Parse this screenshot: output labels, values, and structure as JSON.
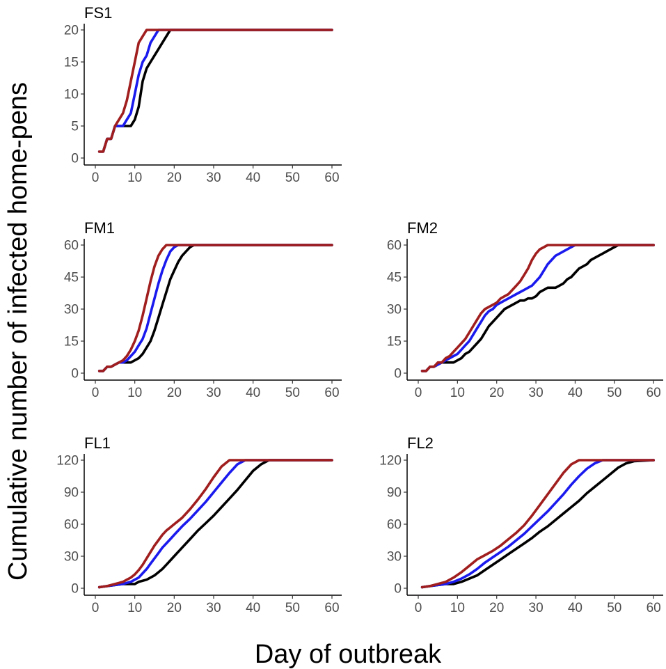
{
  "figure": {
    "ylabel": "Cumulative number of infected home-pens",
    "xlabel": "Day of outbreak"
  },
  "colors": {
    "black": "#000000",
    "blue": "#1a1aee",
    "red": "#a01e1e"
  },
  "chart_data": [
    {
      "type": "line",
      "title": "FS1",
      "xlim": [
        0,
        60
      ],
      "ylim": [
        0,
        20
      ],
      "xticks": [
        0,
        10,
        20,
        30,
        40,
        50,
        60
      ],
      "yticks": [
        0,
        5,
        10,
        15,
        20
      ],
      "series": [
        {
          "name": "black",
          "color": "#000000",
          "x": [
            1,
            2,
            3,
            4,
            5,
            6,
            7,
            8,
            9,
            10,
            11,
            12,
            13,
            14,
            15,
            16,
            17,
            18,
            19,
            60
          ],
          "y": [
            1,
            1,
            3,
            3,
            5,
            5,
            5,
            5,
            5,
            6,
            8,
            12,
            14,
            15,
            16,
            17,
            18,
            19,
            20,
            20
          ]
        },
        {
          "name": "blue",
          "color": "#1a1aee",
          "x": [
            1,
            2,
            3,
            4,
            5,
            6,
            7,
            8,
            9,
            10,
            11,
            12,
            13,
            14,
            15,
            16,
            60
          ],
          "y": [
            1,
            1,
            3,
            3,
            5,
            5,
            5,
            6,
            7,
            10,
            13,
            15,
            16,
            18,
            19,
            20,
            20
          ]
        },
        {
          "name": "red",
          "color": "#a01e1e",
          "x": [
            1,
            2,
            3,
            4,
            5,
            6,
            7,
            8,
            9,
            10,
            11,
            12,
            13,
            60
          ],
          "y": [
            1,
            1,
            3,
            3,
            5,
            6,
            7,
            9,
            12,
            15,
            18,
            19,
            20,
            20
          ]
        }
      ]
    },
    {
      "type": "line",
      "title": "FM1",
      "xlim": [
        0,
        60
      ],
      "ylim": [
        0,
        60
      ],
      "xticks": [
        0,
        10,
        20,
        30,
        40,
        50,
        60
      ],
      "yticks": [
        0,
        15,
        30,
        45,
        60
      ],
      "series": [
        {
          "name": "black",
          "color": "#000000",
          "x": [
            1,
            2,
            3,
            4,
            5,
            6,
            7,
            8,
            9,
            10,
            11,
            12,
            13,
            14,
            15,
            16,
            17,
            18,
            19,
            20,
            21,
            22,
            23,
            24,
            25,
            26,
            60
          ],
          "y": [
            1,
            1,
            3,
            3,
            4,
            5,
            5,
            5,
            5,
            6,
            7,
            9,
            12,
            15,
            20,
            26,
            32,
            38,
            44,
            48,
            52,
            55,
            57,
            59,
            60,
            60,
            60
          ]
        },
        {
          "name": "blue",
          "color": "#1a1aee",
          "x": [
            1,
            2,
            3,
            4,
            5,
            6,
            7,
            8,
            9,
            10,
            11,
            12,
            13,
            14,
            15,
            16,
            17,
            18,
            19,
            20,
            21,
            22,
            60
          ],
          "y": [
            1,
            1,
            3,
            3,
            4,
            5,
            5,
            6,
            8,
            10,
            13,
            16,
            21,
            28,
            35,
            42,
            48,
            53,
            57,
            59,
            60,
            60,
            60
          ]
        },
        {
          "name": "red",
          "color": "#a01e1e",
          "x": [
            1,
            2,
            3,
            4,
            5,
            6,
            7,
            8,
            9,
            10,
            11,
            12,
            13,
            14,
            15,
            16,
            17,
            18,
            60
          ],
          "y": [
            1,
            1,
            3,
            3,
            4,
            5,
            6,
            8,
            11,
            15,
            20,
            27,
            35,
            43,
            50,
            55,
            58,
            60,
            60
          ]
        }
      ]
    },
    {
      "type": "line",
      "title": "FM2",
      "xlim": [
        0,
        60
      ],
      "ylim": [
        0,
        60
      ],
      "xticks": [
        0,
        10,
        20,
        30,
        40,
        50,
        60
      ],
      "yticks": [
        0,
        15,
        30,
        45,
        60
      ],
      "series": [
        {
          "name": "black",
          "color": "#000000",
          "x": [
            1,
            2,
            3,
            4,
            5,
            6,
            7,
            8,
            9,
            10,
            11,
            12,
            13,
            14,
            15,
            16,
            17,
            18,
            19,
            20,
            21,
            22,
            23,
            24,
            25,
            26,
            27,
            28,
            29,
            30,
            31,
            32,
            33,
            34,
            35,
            36,
            37,
            38,
            39,
            40,
            41,
            42,
            43,
            44,
            45,
            46,
            47,
            48,
            49,
            50,
            51,
            52,
            53,
            60
          ],
          "y": [
            1,
            1,
            3,
            3,
            4,
            5,
            5,
            5,
            5,
            6,
            7,
            9,
            10,
            12,
            14,
            16,
            19,
            22,
            24,
            26,
            28,
            30,
            31,
            32,
            33,
            34,
            34,
            35,
            35,
            36,
            38,
            39,
            40,
            40,
            40,
            41,
            42,
            44,
            45,
            47,
            49,
            50,
            51,
            53,
            54,
            55,
            56,
            57,
            58,
            59,
            60,
            60,
            60,
            60
          ]
        },
        {
          "name": "blue",
          "color": "#1a1aee",
          "x": [
            1,
            2,
            3,
            4,
            5,
            6,
            7,
            8,
            9,
            10,
            11,
            12,
            13,
            14,
            15,
            16,
            17,
            18,
            19,
            20,
            21,
            22,
            23,
            24,
            25,
            26,
            27,
            28,
            29,
            30,
            31,
            32,
            33,
            34,
            35,
            36,
            37,
            38,
            39,
            40,
            60
          ],
          "y": [
            1,
            1,
            3,
            3,
            4,
            5,
            6,
            7,
            8,
            9,
            11,
            13,
            15,
            18,
            21,
            24,
            27,
            29,
            30,
            32,
            33,
            34,
            35,
            36,
            37,
            38,
            39,
            40,
            41,
            43,
            45,
            48,
            51,
            53,
            55,
            56,
            57,
            58,
            59,
            60,
            60
          ]
        },
        {
          "name": "red",
          "color": "#a01e1e",
          "x": [
            1,
            2,
            3,
            4,
            5,
            6,
            7,
            8,
            9,
            10,
            11,
            12,
            13,
            14,
            15,
            16,
            17,
            18,
            19,
            20,
            21,
            22,
            23,
            24,
            25,
            26,
            27,
            28,
            29,
            30,
            31,
            32,
            33,
            60
          ],
          "y": [
            1,
            1,
            3,
            3,
            5,
            5,
            7,
            8,
            10,
            12,
            14,
            16,
            19,
            22,
            25,
            28,
            30,
            31,
            32,
            33,
            35,
            36,
            37,
            39,
            41,
            43,
            46,
            49,
            53,
            56,
            58,
            59,
            60,
            60
          ]
        }
      ]
    },
    {
      "type": "line",
      "title": "FL1",
      "xlim": [
        0,
        60
      ],
      "ylim": [
        0,
        120
      ],
      "xticks": [
        0,
        10,
        20,
        30,
        40,
        50,
        60
      ],
      "yticks": [
        0,
        30,
        60,
        90,
        120
      ],
      "series": [
        {
          "name": "black",
          "color": "#000000",
          "x": [
            1,
            3,
            5,
            7,
            8,
            9,
            10,
            11,
            12,
            13,
            14,
            15,
            16,
            17,
            18,
            19,
            20,
            22,
            24,
            26,
            28,
            30,
            32,
            34,
            36,
            38,
            40,
            42,
            44,
            60
          ],
          "y": [
            1,
            2,
            3,
            4,
            4,
            4,
            4,
            6,
            7,
            8,
            10,
            12,
            15,
            18,
            22,
            26,
            30,
            38,
            46,
            54,
            61,
            68,
            76,
            84,
            92,
            101,
            110,
            116,
            120,
            120
          ]
        },
        {
          "name": "blue",
          "color": "#1a1aee",
          "x": [
            1,
            3,
            5,
            7,
            8,
            9,
            10,
            11,
            12,
            13,
            14,
            15,
            16,
            17,
            18,
            19,
            20,
            22,
            24,
            26,
            28,
            30,
            32,
            34,
            36,
            38,
            60
          ],
          "y": [
            1,
            2,
            3,
            4,
            5,
            6,
            8,
            10,
            14,
            18,
            23,
            28,
            33,
            38,
            42,
            46,
            50,
            58,
            65,
            73,
            81,
            90,
            99,
            108,
            116,
            120,
            120
          ]
        },
        {
          "name": "red",
          "color": "#a01e1e",
          "x": [
            1,
            3,
            5,
            6,
            7,
            8,
            9,
            10,
            11,
            12,
            13,
            14,
            15,
            16,
            17,
            18,
            19,
            20,
            22,
            24,
            26,
            28,
            30,
            32,
            34,
            60
          ],
          "y": [
            1,
            2,
            4,
            5,
            6,
            8,
            10,
            13,
            17,
            22,
            28,
            34,
            40,
            45,
            50,
            54,
            57,
            60,
            66,
            74,
            83,
            93,
            104,
            114,
            120,
            120
          ]
        }
      ]
    },
    {
      "type": "line",
      "title": "FL2",
      "xlim": [
        0,
        60
      ],
      "ylim": [
        0,
        120
      ],
      "xticks": [
        0,
        10,
        20,
        30,
        40,
        50,
        60
      ],
      "yticks": [
        0,
        30,
        60,
        90,
        120
      ],
      "series": [
        {
          "name": "black",
          "color": "#000000",
          "x": [
            1,
            3,
            5,
            7,
            9,
            11,
            13,
            15,
            17,
            19,
            21,
            23,
            25,
            27,
            29,
            31,
            33,
            35,
            37,
            39,
            41,
            43,
            45,
            47,
            49,
            51,
            53,
            55,
            60
          ],
          "y": [
            1,
            2,
            3,
            4,
            4,
            6,
            9,
            12,
            17,
            22,
            27,
            32,
            37,
            42,
            47,
            53,
            58,
            64,
            70,
            76,
            82,
            89,
            95,
            101,
            107,
            113,
            117,
            119,
            120
          ]
        },
        {
          "name": "blue",
          "color": "#1a1aee",
          "x": [
            1,
            3,
            5,
            7,
            9,
            11,
            13,
            15,
            17,
            19,
            21,
            23,
            25,
            27,
            29,
            31,
            33,
            35,
            37,
            39,
            41,
            43,
            45,
            47,
            60
          ],
          "y": [
            1,
            2,
            3,
            4,
            6,
            9,
            13,
            18,
            24,
            29,
            34,
            39,
            45,
            51,
            58,
            65,
            72,
            80,
            88,
            97,
            105,
            112,
            117,
            120,
            120
          ]
        },
        {
          "name": "red",
          "color": "#a01e1e",
          "x": [
            1,
            3,
            5,
            7,
            9,
            11,
            13,
            15,
            17,
            19,
            21,
            23,
            25,
            27,
            29,
            31,
            33,
            35,
            37,
            39,
            41,
            60
          ],
          "y": [
            1,
            2,
            4,
            6,
            10,
            15,
            21,
            27,
            31,
            35,
            40,
            46,
            52,
            59,
            68,
            78,
            88,
            98,
            108,
            116,
            120,
            120
          ]
        }
      ]
    }
  ]
}
